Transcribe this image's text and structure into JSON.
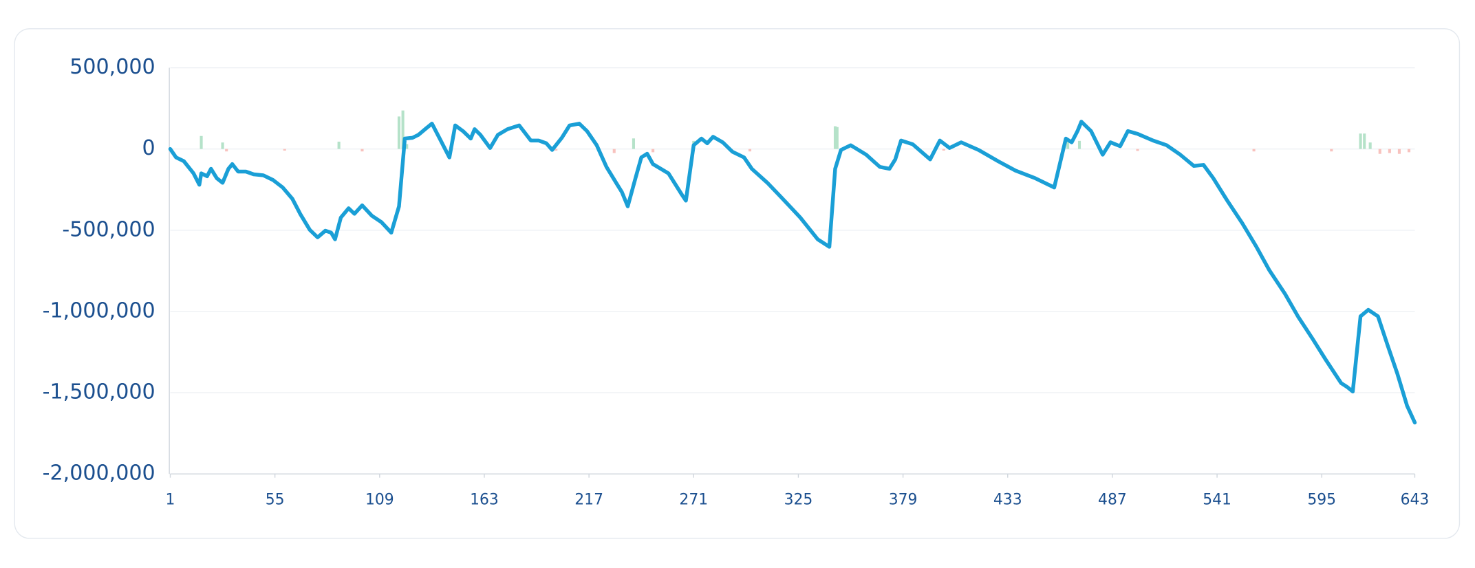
{
  "chart_data": {
    "type": "line",
    "xlim": [
      1,
      643
    ],
    "xticks": [
      1,
      55,
      109,
      163,
      217,
      271,
      325,
      379,
      433,
      487,
      541,
      595,
      643
    ],
    "ylim": [
      -2000000,
      500000
    ],
    "yticks": [
      {
        "value": -2000000,
        "label": "-2,000,000"
      },
      {
        "value": -1500000,
        "label": "-1,500,000"
      },
      {
        "value": -1000000,
        "label": "-1,000,000"
      },
      {
        "value": -500000,
        "label": "-500,000"
      },
      {
        "value": 0,
        "label": "0"
      },
      {
        "value": 500000,
        "label": "500,000"
      }
    ],
    "grid": true,
    "series": [
      {
        "type": "bar",
        "color": "#b5e2c9",
        "x": [
          17,
          28,
          88,
          119,
          121,
          123,
          240,
          271,
          344,
          345,
          464,
          470,
          615,
          617,
          620
        ],
        "values": [
          80000,
          40000,
          45000,
          200000,
          237000,
          30000,
          65000,
          50000,
          140000,
          135000,
          45000,
          50000,
          95000,
          95000,
          40000
        ]
      },
      {
        "type": "bar",
        "color": "#f8c2be",
        "x": [
          30,
          60,
          100,
          200,
          230,
          250,
          300,
          400,
          500,
          560,
          600,
          625,
          630,
          635,
          640
        ],
        "values": [
          -15000,
          -10000,
          -15000,
          -10000,
          -25000,
          -20000,
          -15000,
          -10000,
          -12000,
          -15000,
          -15000,
          -30000,
          -25000,
          -30000,
          -20000
        ]
      },
      {
        "type": "line",
        "color": "#1a9fd6",
        "x": [
          1,
          4,
          8,
          13,
          16,
          17,
          20,
          22,
          25,
          28,
          31,
          33,
          36,
          40,
          44,
          49,
          54,
          59,
          64,
          68,
          73,
          77,
          81,
          84,
          86,
          89,
          93,
          96,
          100,
          105,
          110,
          115,
          119,
          122,
          126,
          129,
          133,
          136,
          140,
          145,
          148,
          152,
          156,
          158,
          161,
          166,
          170,
          175,
          181,
          187,
          191,
          195,
          198,
          203,
          207,
          212,
          216,
          221,
          226,
          231,
          234,
          237,
          241,
          244,
          247,
          250,
          258,
          265,
          267,
          271,
          275,
          278,
          281,
          286,
          291,
          297,
          301,
          309,
          316,
          326,
          335,
          341,
          344,
          347,
          352,
          360,
          367,
          372,
          375,
          378,
          384,
          393,
          398,
          403,
          409,
          418,
          428,
          437,
          447,
          457,
          463,
          466,
          469,
          471,
          476,
          482,
          486,
          491,
          495,
          500,
          508,
          515,
          522,
          529,
          534,
          539,
          546,
          554,
          561,
          568,
          576,
          583,
          590,
          597,
          605,
          608,
          611,
          615,
          619,
          624,
          629,
          634,
          639,
          643
        ],
        "values": [
          0,
          -52000,
          -75000,
          -150000,
          -220000,
          -150000,
          -168000,
          -122000,
          -180000,
          -208000,
          -122000,
          -93000,
          -139000,
          -139000,
          -156000,
          -162000,
          -191000,
          -237000,
          -307000,
          -399000,
          -498000,
          -544000,
          -503000,
          -515000,
          -556000,
          -422000,
          -365000,
          -399000,
          -347000,
          -411000,
          -451000,
          -515000,
          -353000,
          64000,
          69000,
          87000,
          127000,
          156000,
          64000,
          -52000,
          145000,
          110000,
          64000,
          122000,
          87000,
          6000,
          87000,
          122000,
          145000,
          52000,
          52000,
          35000,
          -6000,
          69000,
          145000,
          156000,
          110000,
          23000,
          -110000,
          -208000,
          -266000,
          -353000,
          -179000,
          -52000,
          -29000,
          -93000,
          -150000,
          -283000,
          -318000,
          23000,
          64000,
          35000,
          75000,
          41000,
          -17000,
          -52000,
          -122000,
          -208000,
          -295000,
          -422000,
          -556000,
          -602000,
          -122000,
          -6000,
          23000,
          -35000,
          -110000,
          -122000,
          -64000,
          52000,
          29000,
          -64000,
          52000,
          6000,
          41000,
          -6000,
          -75000,
          -133000,
          -179000,
          -237000,
          64000,
          41000,
          110000,
          168000,
          110000,
          -35000,
          41000,
          17000,
          110000,
          93000,
          52000,
          23000,
          -35000,
          -104000,
          -98000,
          -179000,
          -313000,
          -457000,
          -596000,
          -747000,
          -891000,
          -1036000,
          -1163000,
          -1296000,
          -1441000,
          -1464000,
          -1493000,
          -1030000,
          -990000,
          -1030000,
          -1209000,
          -1383000,
          -1580000,
          -1684000
        ]
      }
    ]
  }
}
